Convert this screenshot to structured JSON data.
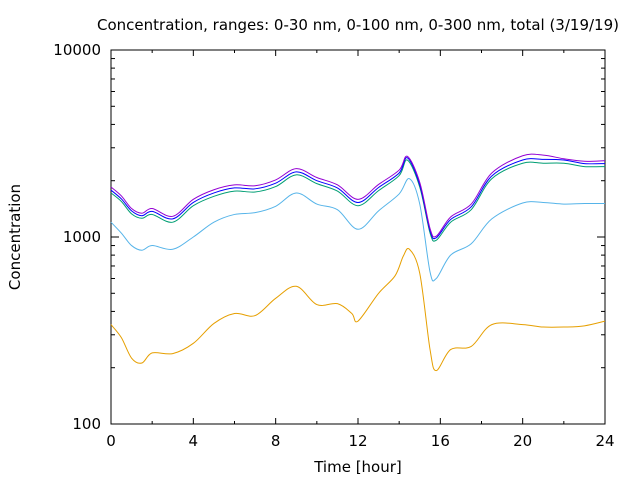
{
  "chart_data": {
    "type": "line",
    "title": "Concentration, ranges: 0-30 nm, 0-100 nm, 0-300 nm, total (3/19/19)",
    "xlabel": "Time [hour]",
    "ylabel": "Concentration",
    "xlim": [
      0,
      24
    ],
    "ylim": [
      100,
      10000
    ],
    "yscale": "log",
    "xticks": [
      "0",
      "4",
      "8",
      "12",
      "16",
      "20",
      "24"
    ],
    "yticks": [
      "100",
      "1000",
      "10000"
    ],
    "grid": false,
    "legend": "none",
    "series": [
      {
        "color": "#e69f00",
        "x": [
          0,
          0.5,
          1,
          1.5,
          2,
          3,
          4,
          5,
          6,
          7,
          8,
          9,
          10,
          11,
          11.7,
          12,
          13,
          13.8,
          14.2,
          14.5,
          15,
          15.5,
          15.8,
          16.5,
          17.5,
          18.5,
          20,
          21,
          22,
          23,
          24
        ],
        "y": [
          340,
          290,
          225,
          212,
          240,
          238,
          270,
          345,
          390,
          380,
          470,
          545,
          435,
          440,
          390,
          355,
          500,
          620,
          790,
          860,
          640,
          250,
          193,
          250,
          260,
          340,
          340,
          330,
          330,
          335,
          355
        ]
      },
      {
        "color": "#56b4e9",
        "x": [
          0,
          0.5,
          1,
          1.5,
          2,
          3,
          4,
          5,
          6,
          7,
          8,
          9,
          10,
          11,
          12,
          13,
          14,
          14.5,
          15,
          15.5,
          15.8,
          16.5,
          17.5,
          18.5,
          20,
          21,
          22,
          23,
          24
        ],
        "y": [
          1200,
          1050,
          900,
          850,
          900,
          860,
          1000,
          1200,
          1320,
          1350,
          1460,
          1720,
          1500,
          1400,
          1100,
          1380,
          1700,
          2050,
          1500,
          650,
          600,
          800,
          920,
          1250,
          1520,
          1530,
          1500,
          1510,
          1510
        ]
      },
      {
        "color": "#009e73",
        "x": [
          0,
          0.5,
          1,
          1.5,
          2,
          3,
          4,
          5,
          6,
          7,
          8,
          9,
          10,
          11,
          12,
          13,
          14,
          14.4,
          15,
          15.5,
          15.8,
          16.5,
          17.5,
          18.5,
          20,
          21,
          22,
          23,
          24
        ],
        "y": [
          1720,
          1550,
          1330,
          1260,
          1320,
          1200,
          1470,
          1650,
          1760,
          1740,
          1860,
          2150,
          1930,
          1760,
          1470,
          1770,
          2130,
          2580,
          1850,
          1050,
          960,
          1200,
          1400,
          2050,
          2480,
          2480,
          2480,
          2380,
          2380
        ]
      },
      {
        "color": "#0000ff",
        "x": [
          0,
          0.5,
          1,
          1.5,
          2,
          3,
          4,
          5,
          6,
          7,
          8,
          9,
          10,
          11,
          12,
          13,
          14,
          14.4,
          15,
          15.5,
          15.8,
          16.5,
          17.5,
          18.5,
          20,
          21,
          22,
          23,
          24
        ],
        "y": [
          1780,
          1600,
          1380,
          1300,
          1370,
          1250,
          1530,
          1720,
          1830,
          1810,
          1940,
          2230,
          2000,
          1830,
          1530,
          1840,
          2200,
          2650,
          1900,
          1080,
          990,
          1240,
          1450,
          2120,
          2580,
          2600,
          2580,
          2470,
          2470
        ]
      },
      {
        "color": "#9400d3",
        "x": [
          0,
          0.5,
          1,
          1.5,
          2,
          3,
          4,
          5,
          6,
          7,
          8,
          9,
          10,
          11,
          12,
          13,
          14,
          14.4,
          15,
          15.5,
          15.8,
          16.5,
          17.5,
          18.5,
          20,
          21,
          22,
          23,
          24
        ],
        "y": [
          1850,
          1660,
          1420,
          1340,
          1420,
          1290,
          1590,
          1790,
          1900,
          1880,
          2020,
          2320,
          2080,
          1900,
          1590,
          1910,
          2280,
          2700,
          1960,
          1110,
          1010,
          1280,
          1500,
          2200,
          2720,
          2740,
          2620,
          2540,
          2560
        ]
      }
    ]
  }
}
